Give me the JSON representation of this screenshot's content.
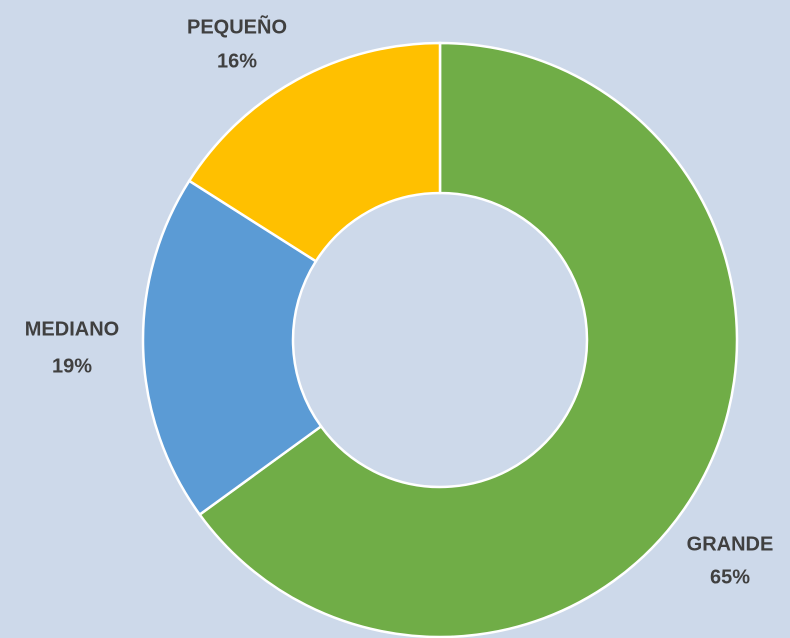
{
  "chart_data": {
    "type": "donut",
    "categories": [
      "GRANDE",
      "MEDIANO",
      "PEQUEÑO"
    ],
    "values": [
      65,
      19,
      16
    ],
    "value_labels": [
      "65%",
      "19%",
      "16%"
    ],
    "colors": [
      "#70ad47",
      "#5b9bd5",
      "#ffc000"
    ]
  }
}
